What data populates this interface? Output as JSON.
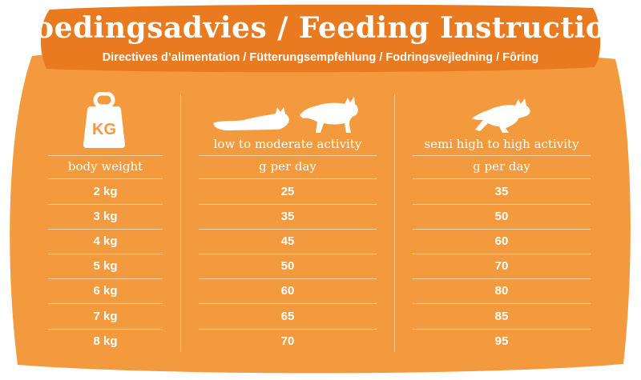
{
  "header": {
    "title": "Voedingsadvies / Feeding Instruction",
    "subtitle": "Directives d’alimentation / Fütterungsempfehlung / Fodringsvejledning / Fôring"
  },
  "weight_icon_label": "KG",
  "columns": {
    "weight": {
      "unit_label": "body weight"
    },
    "low": {
      "activity_label": "low to moderate activity",
      "unit_label": "g per day"
    },
    "high": {
      "activity_label": "semi high to high activity",
      "unit_label": "g per day"
    }
  },
  "rows": [
    {
      "weight": "2 kg",
      "low": "25",
      "high": "35"
    },
    {
      "weight": "3 kg",
      "low": "35",
      "high": "50"
    },
    {
      "weight": "4 kg",
      "low": "45",
      "high": "60"
    },
    {
      "weight": "5 kg",
      "low": "50",
      "high": "70"
    },
    {
      "weight": "6 kg",
      "low": "60",
      "high": "80"
    },
    {
      "weight": "7 kg",
      "low": "65",
      "high": "85"
    },
    {
      "weight": "8 kg",
      "low": "70",
      "high": "95"
    }
  ],
  "icons": [
    "weight-kg-icon",
    "lying-cat-icon",
    "walking-cat-icon",
    "running-cat-icon"
  ],
  "colors": {
    "background": "#f39a3e",
    "banner": "#ea7a20",
    "text": "#ffffff"
  }
}
